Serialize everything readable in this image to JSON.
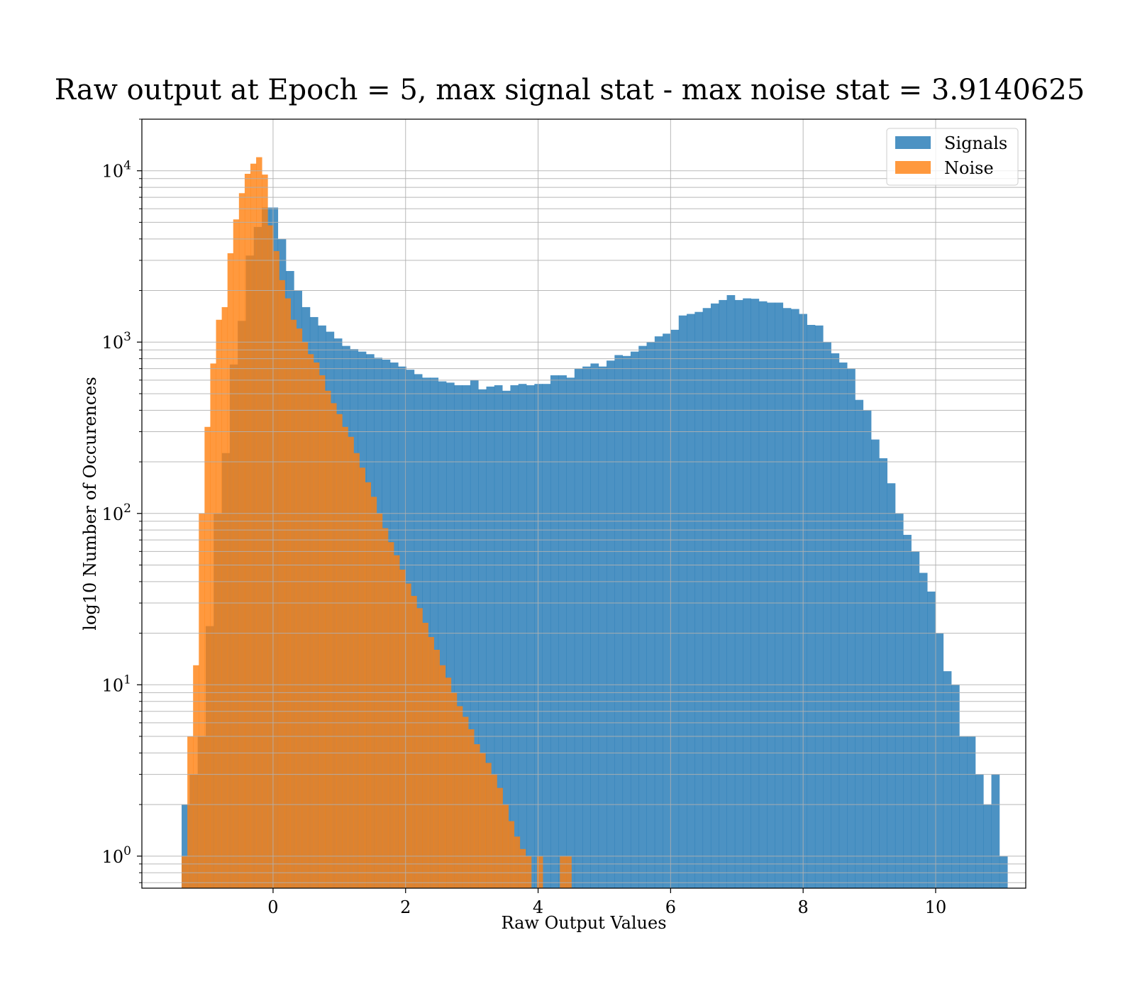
{
  "chart_data": {
    "type": "histogram",
    "title": "Raw output at Epoch = 5, max signal stat - max noise stat = 3.9140625",
    "xlabel": "Raw Output Values",
    "ylabel": "log10 Number of Occurences",
    "xlim": [
      -1.98,
      11.36
    ],
    "ylim": [
      0.65,
      20000
    ],
    "yscale": "log",
    "grid": true,
    "legend_position": "top-right",
    "x_ticks": [
      {
        "value": 0,
        "label": "0"
      },
      {
        "value": 2,
        "label": "2"
      },
      {
        "value": 4,
        "label": "4"
      },
      {
        "value": 6,
        "label": "6"
      },
      {
        "value": 8,
        "label": "8"
      },
      {
        "value": 10,
        "label": "10"
      }
    ],
    "y_ticks": [
      {
        "value": 1,
        "base": "10",
        "exp": "0"
      },
      {
        "value": 10,
        "base": "10",
        "exp": "1"
      },
      {
        "value": 100,
        "base": "10",
        "exp": "2"
      },
      {
        "value": 1000,
        "base": "10",
        "exp": "3"
      },
      {
        "value": 10000,
        "base": "10",
        "exp": "4"
      }
    ],
    "series": [
      {
        "name": "Signals",
        "color": "#1f77b4",
        "opacity": 0.8,
        "bin_start": -1.38,
        "bin_width": 0.121,
        "values": [
          2,
          3,
          5,
          22,
          100,
          225,
          740,
          1330,
          3200,
          4700,
          6100,
          6100,
          4000,
          2600,
          2000,
          1600,
          1400,
          1250,
          1150,
          1050,
          950,
          910,
          880,
          850,
          810,
          790,
          760,
          720,
          690,
          650,
          620,
          620,
          590,
          580,
          560,
          560,
          600,
          530,
          550,
          560,
          520,
          560,
          570,
          560,
          570,
          570,
          640,
          640,
          620,
          700,
          720,
          750,
          720,
          780,
          840,
          830,
          880,
          950,
          1000,
          1080,
          1120,
          1180,
          1430,
          1460,
          1500,
          1580,
          1680,
          1760,
          1880,
          1760,
          1800,
          1790,
          1730,
          1700,
          1700,
          1580,
          1560,
          1460,
          1260,
          1250,
          1000,
          860,
          760,
          700,
          460,
          400,
          270,
          210,
          150,
          100,
          75,
          60,
          45,
          35,
          20,
          12,
          10,
          5,
          5,
          3,
          2,
          3,
          1
        ]
      },
      {
        "name": "Noise",
        "color": "#ff7f0e",
        "opacity": 0.8,
        "bin_start": -1.38,
        "bin_width": 0.0865,
        "values": [
          1,
          5,
          13,
          100,
          320,
          750,
          1350,
          1600,
          3300,
          5200,
          7400,
          9600,
          11000,
          12000,
          9500,
          4800,
          3400,
          2300,
          1800,
          1350,
          1200,
          1000,
          850,
          760,
          640,
          520,
          440,
          380,
          320,
          280,
          225,
          185,
          152,
          125,
          100,
          82,
          68,
          57,
          47,
          39,
          33,
          28,
          23,
          19,
          16,
          13,
          11,
          9,
          7.5,
          6.5,
          5.5,
          4.5,
          4,
          3.5,
          3,
          2.5,
          2,
          1.6,
          1.3,
          1.1,
          1,
          0,
          1,
          0,
          0,
          0,
          1,
          1
        ]
      }
    ]
  }
}
